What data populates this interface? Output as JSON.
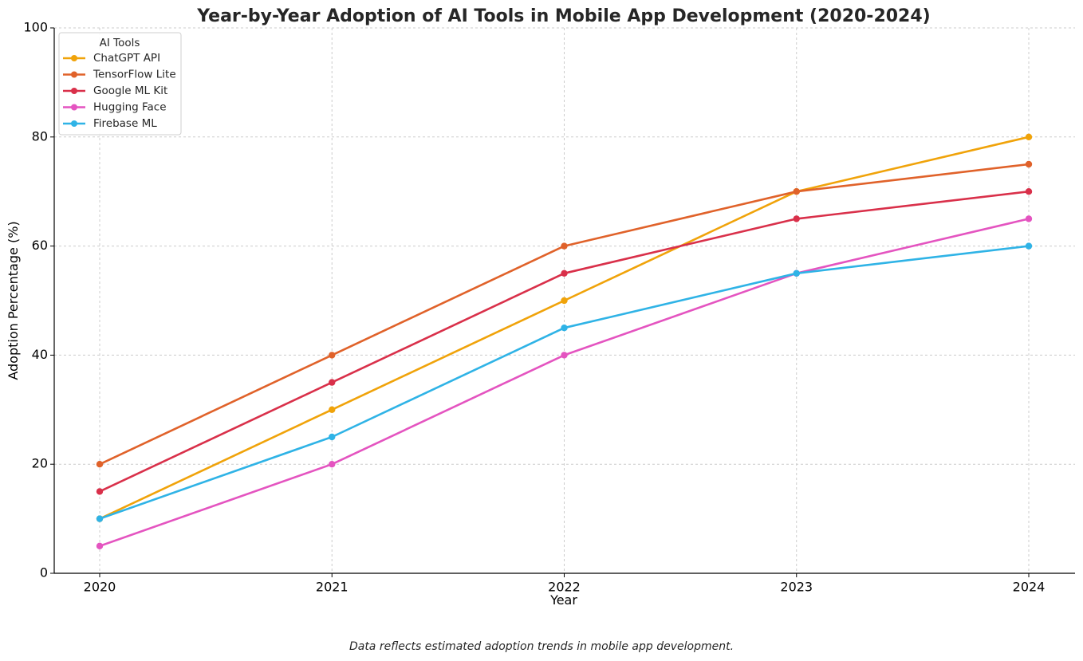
{
  "chart_data": {
    "type": "line",
    "title": "Year-by-Year Adoption of AI Tools in Mobile App Development (2020-2024)",
    "xlabel": "Year",
    "ylabel": "Adoption Percentage (%)",
    "categories": [
      "2020",
      "2021",
      "2022",
      "2023",
      "2024"
    ],
    "ylim": [
      0,
      100
    ],
    "yticks": [
      "0",
      "20",
      "40",
      "60",
      "80",
      "100"
    ],
    "grid": true,
    "legend_title": "AI Tools",
    "legend_position": "top-left",
    "caption": "Data reflects estimated adoption trends in mobile app development.",
    "series": [
      {
        "name": "ChatGPT API",
        "color": "#f0a30a",
        "values": [
          10,
          30,
          50,
          70,
          80
        ]
      },
      {
        "name": "TensorFlow Lite",
        "color": "#e0622a",
        "values": [
          20,
          40,
          60,
          70,
          75
        ]
      },
      {
        "name": "Google ML Kit",
        "color": "#d9304a",
        "values": [
          15,
          35,
          55,
          65,
          70
        ]
      },
      {
        "name": "Hugging Face",
        "color": "#e454c0",
        "values": [
          5,
          20,
          40,
          55,
          65
        ]
      },
      {
        "name": "Firebase ML",
        "color": "#2fb3e6",
        "values": [
          10,
          25,
          45,
          55,
          60
        ]
      }
    ]
  }
}
